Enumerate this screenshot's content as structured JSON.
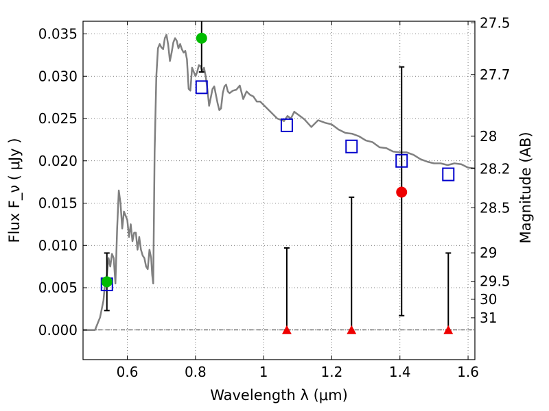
{
  "chart_data": {
    "type": "scatter",
    "xlabel": "Wavelength  λ (μm)",
    "ylabel": "Flux  F_ν  ( μJy )",
    "ylabel_right": "Magnitude (AB)",
    "xlim": [
      0.47,
      1.62
    ],
    "ylim": [
      -0.0035,
      0.0365
    ],
    "x_ticks": [
      0.6,
      0.8,
      1.0,
      1.2,
      1.4,
      1.6
    ],
    "x_tick_labels": [
      "0.6",
      "0.8",
      "1",
      "1.2",
      "1.4",
      "1.6"
    ],
    "y_ticks": [
      0.0,
      0.005,
      0.01,
      0.015,
      0.02,
      0.025,
      0.03,
      0.035
    ],
    "y_tick_labels": [
      "0.000",
      "0.005",
      "0.010",
      "0.015",
      "0.020",
      "0.025",
      "0.030",
      "0.035"
    ],
    "mag_ticks": [
      27.5,
      27.7,
      28,
      28.2,
      28.5,
      29,
      29.5,
      30,
      31
    ],
    "mag_tick_labels": [
      "27.5",
      "27.7",
      "28",
      "28.2",
      "28.5",
      "29",
      "29.5",
      "30",
      "31"
    ],
    "grid": true,
    "colors": {
      "sed": "#808080",
      "model_square": "#0000cc",
      "detection": "#00bb00",
      "upper_limit": "#ee0000",
      "error_bar": "#000000",
      "zero_line": "#000000"
    },
    "sed": {
      "x": [
        0.47,
        0.505,
        0.51,
        0.52,
        0.53,
        0.535,
        0.54,
        0.545,
        0.55,
        0.555,
        0.56,
        0.565,
        0.57,
        0.575,
        0.58,
        0.585,
        0.59,
        0.595,
        0.6,
        0.605,
        0.61,
        0.615,
        0.62,
        0.625,
        0.63,
        0.635,
        0.64,
        0.645,
        0.65,
        0.655,
        0.66,
        0.665,
        0.67,
        0.673,
        0.676,
        0.68,
        0.685,
        0.69,
        0.695,
        0.7,
        0.705,
        0.71,
        0.715,
        0.72,
        0.725,
        0.73,
        0.735,
        0.74,
        0.745,
        0.75,
        0.755,
        0.76,
        0.765,
        0.77,
        0.775,
        0.78,
        0.785,
        0.79,
        0.795,
        0.8,
        0.805,
        0.81,
        0.815,
        0.82,
        0.825,
        0.83,
        0.835,
        0.84,
        0.845,
        0.85,
        0.855,
        0.86,
        0.865,
        0.87,
        0.875,
        0.88,
        0.885,
        0.89,
        0.895,
        0.9,
        0.91,
        0.92,
        0.93,
        0.94,
        0.95,
        0.96,
        0.97,
        0.98,
        0.99,
        1.0,
        1.02,
        1.04,
        1.06,
        1.07,
        1.08,
        1.09,
        1.1,
        1.12,
        1.14,
        1.16,
        1.18,
        1.2,
        1.22,
        1.24,
        1.26,
        1.28,
        1.3,
        1.32,
        1.34,
        1.36,
        1.38,
        1.4,
        1.42,
        1.44,
        1.46,
        1.48,
        1.5,
        1.52,
        1.54,
        1.56,
        1.58,
        1.6,
        1.62
      ],
      "y": [
        0.0,
        0.0,
        0.0005,
        0.0015,
        0.0035,
        0.0058,
        0.0065,
        0.0085,
        0.0075,
        0.009,
        0.0085,
        0.0055,
        0.012,
        0.0165,
        0.015,
        0.012,
        0.014,
        0.0135,
        0.013,
        0.011,
        0.0125,
        0.0105,
        0.0115,
        0.0115,
        0.0095,
        0.011,
        0.0095,
        0.0088,
        0.0085,
        0.0075,
        0.0072,
        0.0095,
        0.0085,
        0.0065,
        0.0055,
        0.021,
        0.03,
        0.0333,
        0.0338,
        0.0334,
        0.0332,
        0.0345,
        0.0349,
        0.0337,
        0.0318,
        0.0328,
        0.034,
        0.0345,
        0.0342,
        0.0333,
        0.0338,
        0.0332,
        0.0328,
        0.033,
        0.032,
        0.0285,
        0.0283,
        0.031,
        0.0305,
        0.03,
        0.0305,
        0.0313,
        0.0312,
        0.0305,
        0.031,
        0.03,
        0.0285,
        0.0265,
        0.0275,
        0.0285,
        0.0288,
        0.0278,
        0.0268,
        0.026,
        0.0262,
        0.028,
        0.0288,
        0.029,
        0.0282,
        0.028,
        0.0283,
        0.0284,
        0.0289,
        0.0273,
        0.0282,
        0.0278,
        0.0276,
        0.027,
        0.027,
        0.0266,
        0.0258,
        0.025,
        0.0247,
        0.0253,
        0.025,
        0.0258,
        0.0255,
        0.0249,
        0.024,
        0.0248,
        0.0245,
        0.0243,
        0.0237,
        0.0233,
        0.0232,
        0.0229,
        0.0224,
        0.0222,
        0.0216,
        0.0215,
        0.0211,
        0.021,
        0.021,
        0.0207,
        0.0202,
        0.0199,
        0.0197,
        0.0197,
        0.0195,
        0.0197,
        0.0196,
        0.0192,
        0.0191
      ]
    },
    "model_squares": {
      "x": [
        0.54,
        0.818,
        1.068,
        1.258,
        1.405,
        1.542
      ],
      "y": [
        0.0054,
        0.0287,
        0.0242,
        0.0217,
        0.02,
        0.0184
      ]
    },
    "detections": {
      "x": [
        0.54,
        0.818
      ],
      "y": [
        0.0057,
        0.0345
      ],
      "err_low": [
        0.0023,
        0.0305
      ],
      "err_high": [
        0.0091,
        0.0365
      ]
    },
    "measurement_red": {
      "x": [
        1.405
      ],
      "y": [
        0.0163
      ],
      "err_low": [
        0.0017
      ],
      "err_high": [
        0.0311
      ]
    },
    "upper_limits": {
      "x": [
        1.068,
        1.258,
        1.542
      ],
      "y": [
        0.0,
        0.0,
        0.0
      ],
      "err_high": [
        0.0097,
        0.0157,
        0.0091
      ]
    }
  }
}
